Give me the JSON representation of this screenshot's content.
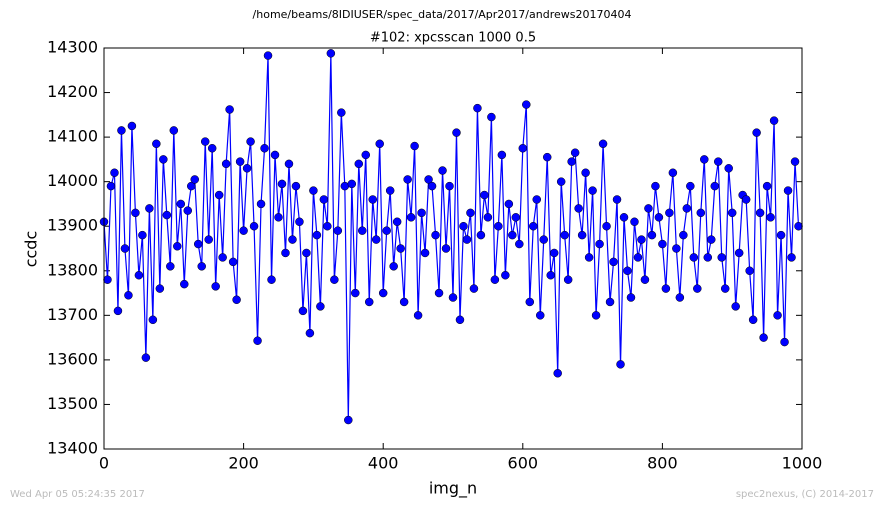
{
  "chart_data": {
    "type": "line",
    "suptitle": "/home/beams/8IDIUSER/spec_data/2017/Apr2017/andrews20170404",
    "title": "#102: xpcsscan 1000 0.5",
    "x_label": "img_n",
    "y_label": "ccdc",
    "footer_left": "Wed Apr 05 05:24:35 2017",
    "footer_right": "spec2nexus, (C) 2014-2017",
    "xlim": [
      0,
      1000
    ],
    "xticks": [
      0,
      200,
      400,
      600,
      800,
      1000
    ],
    "ylim": [
      13400,
      14300
    ],
    "yticks": [
      13400,
      13500,
      13600,
      13700,
      13800,
      13900,
      14000,
      14100,
      14200,
      14300
    ],
    "x": [
      0,
      5,
      10,
      15,
      20,
      25,
      30,
      35,
      40,
      45,
      50,
      55,
      60,
      65,
      70,
      75,
      80,
      85,
      90,
      95,
      100,
      105,
      110,
      115,
      120,
      125,
      130,
      135,
      140,
      145,
      150,
      155,
      160,
      165,
      170,
      175,
      180,
      185,
      190,
      195,
      200,
      205,
      210,
      215,
      220,
      225,
      230,
      235,
      240,
      245,
      250,
      255,
      260,
      265,
      270,
      275,
      280,
      285,
      290,
      295,
      300,
      305,
      310,
      315,
      320,
      325,
      330,
      335,
      340,
      345,
      350,
      355,
      360,
      365,
      370,
      375,
      380,
      385,
      390,
      395,
      400,
      405,
      410,
      415,
      420,
      425,
      430,
      435,
      440,
      445,
      450,
      455,
      460,
      465,
      470,
      475,
      480,
      485,
      490,
      495,
      500,
      505,
      510,
      515,
      520,
      525,
      530,
      535,
      540,
      545,
      550,
      555,
      560,
      565,
      570,
      575,
      580,
      585,
      590,
      595,
      600,
      605,
      610,
      615,
      620,
      625,
      630,
      635,
      640,
      645,
      650,
      655,
      660,
      665,
      670,
      675,
      680,
      685,
      690,
      695,
      700,
      705,
      710,
      715,
      720,
      725,
      730,
      735,
      740,
      745,
      750,
      755,
      760,
      765,
      770,
      775,
      780,
      785,
      790,
      795,
      800,
      805,
      810,
      815,
      820,
      825,
      830,
      835,
      840,
      845,
      850,
      855,
      860,
      865,
      870,
      875,
      880,
      885,
      890,
      895,
      900,
      905,
      910,
      915,
      920,
      925,
      930,
      935,
      940,
      945,
      950,
      955,
      960,
      965,
      970,
      975,
      980,
      985,
      990,
      995
    ],
    "series": [
      {
        "name": "ccdc",
        "color": "#0000ff",
        "values": [
          13910,
          13780,
          13990,
          14020,
          13710,
          14115,
          13850,
          13745,
          14125,
          13930,
          13790,
          13880,
          13605,
          13940,
          13690,
          14085,
          13760,
          14050,
          13925,
          13810,
          14115,
          13855,
          13950,
          13770,
          13935,
          13990,
          14005,
          13860,
          13810,
          14090,
          13870,
          14075,
          13765,
          13970,
          13830,
          14040,
          14162,
          13820,
          13735,
          14045,
          13890,
          14030,
          14090,
          13900,
          13643,
          13950,
          14075,
          14283,
          13780,
          14060,
          13920,
          13995,
          13840,
          14040,
          13870,
          13990,
          13910,
          13710,
          13840,
          13660,
          13980,
          13880,
          13720,
          13960,
          13900,
          14288,
          13780,
          13890,
          14155,
          13990,
          13465,
          13995,
          13750,
          14040,
          13890,
          14060,
          13730,
          13960,
          13870,
          14085,
          13750,
          13890,
          13980,
          13810,
          13910,
          13850,
          13730,
          14005,
          13920,
          14080,
          13700,
          13930,
          13840,
          14005,
          13990,
          13880,
          13750,
          14025,
          13850,
          13990,
          13740,
          14110,
          13690,
          13900,
          13870,
          13930,
          13760,
          14165,
          13880,
          13970,
          13920,
          14145,
          13780,
          13900,
          14060,
          13790,
          13950,
          13880,
          13920,
          13860,
          14075,
          14173,
          13730,
          13900,
          13960,
          13700,
          13870,
          14055,
          13790,
          13840,
          13570,
          14000,
          13880,
          13780,
          14045,
          14065,
          13940,
          13880,
          14020,
          13830,
          13980,
          13700,
          13860,
          14085,
          13900,
          13730,
          13820,
          13960,
          13590,
          13920,
          13800,
          13740,
          13910,
          13830,
          13870,
          13780,
          13940,
          13880,
          13990,
          13920,
          13860,
          13760,
          13930,
          14020,
          13850,
          13740,
          13880,
          13940,
          13990,
          13830,
          13760,
          13930,
          14050,
          13830,
          13870,
          13990,
          14045,
          13830,
          13760,
          14030,
          13930,
          13720,
          13840,
          13970,
          13960,
          13800,
          13690,
          14110,
          13930,
          13650,
          13990,
          13920,
          14137,
          13700,
          13880,
          13640,
          13980,
          13830,
          14045,
          13900
        ]
      }
    ]
  }
}
